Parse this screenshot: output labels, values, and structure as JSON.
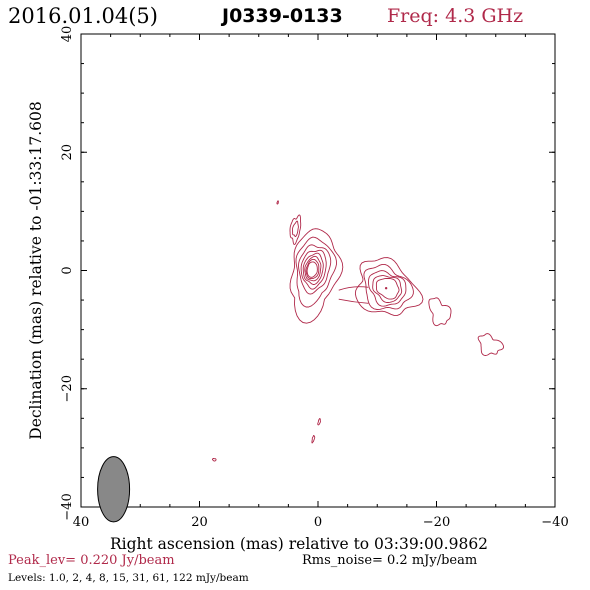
{
  "header": {
    "date_label": "2016.01.04(5)",
    "source_label": "J0339-0133",
    "freq_label": "Freq: 4.3 GHz"
  },
  "colors": {
    "contour": "#b0294a",
    "label_accent": "#b0294a",
    "beam_fill": "#888888",
    "text": "#000000"
  },
  "chart_data": {
    "type": "contour",
    "title": "J0339-0133",
    "xlabel": "Right ascension (mas) relative to 03:39:00.9862",
    "ylabel": "Declination (mas) relative to -01:33:17.608",
    "xlim": [
      40,
      -40
    ],
    "ylim": [
      -40,
      40
    ],
    "x_ticks": [
      40,
      20,
      0,
      -20,
      -40
    ],
    "y_ticks": [
      -40,
      -20,
      0,
      20,
      40
    ],
    "x_tick_labels": [
      "40",
      "20",
      "0",
      "−20",
      "−40"
    ],
    "y_tick_labels": [
      "−40",
      "−20",
      "0",
      "20",
      "40"
    ],
    "peak_position": [
      0.5,
      0.5
    ],
    "components": [
      {
        "name": "core",
        "x": 0.5,
        "y": 0.5,
        "levels": 8
      },
      {
        "name": "jet-knot",
        "x": -11.5,
        "y": -3.0,
        "levels": 5
      },
      {
        "name": "jet-blob-1",
        "x": -20.5,
        "y": -7.0,
        "levels": 1
      },
      {
        "name": "jet-blob-2",
        "x": -29.0,
        "y": -12.6,
        "levels": 1
      },
      {
        "name": "north-blob",
        "x": 3.8,
        "y": 7.0,
        "levels": 2
      }
    ],
    "beam": {
      "x": 34.5,
      "y": -37.0,
      "major_mas": 3.8,
      "minor_mas": 2.0,
      "pa_deg": 0
    },
    "peak_level": "Peak_lev=  0.220 Jy/beam",
    "rms_noise": "Rms_noise=  0.2 mJy/beam",
    "contour_levels_label": "Levels: 1.0,   2,   4,   8,  15,  31,  61, 122 mJy/beam",
    "contour_levels_mJy": [
      1.0,
      2,
      4,
      8,
      15,
      31,
      61,
      122
    ]
  }
}
